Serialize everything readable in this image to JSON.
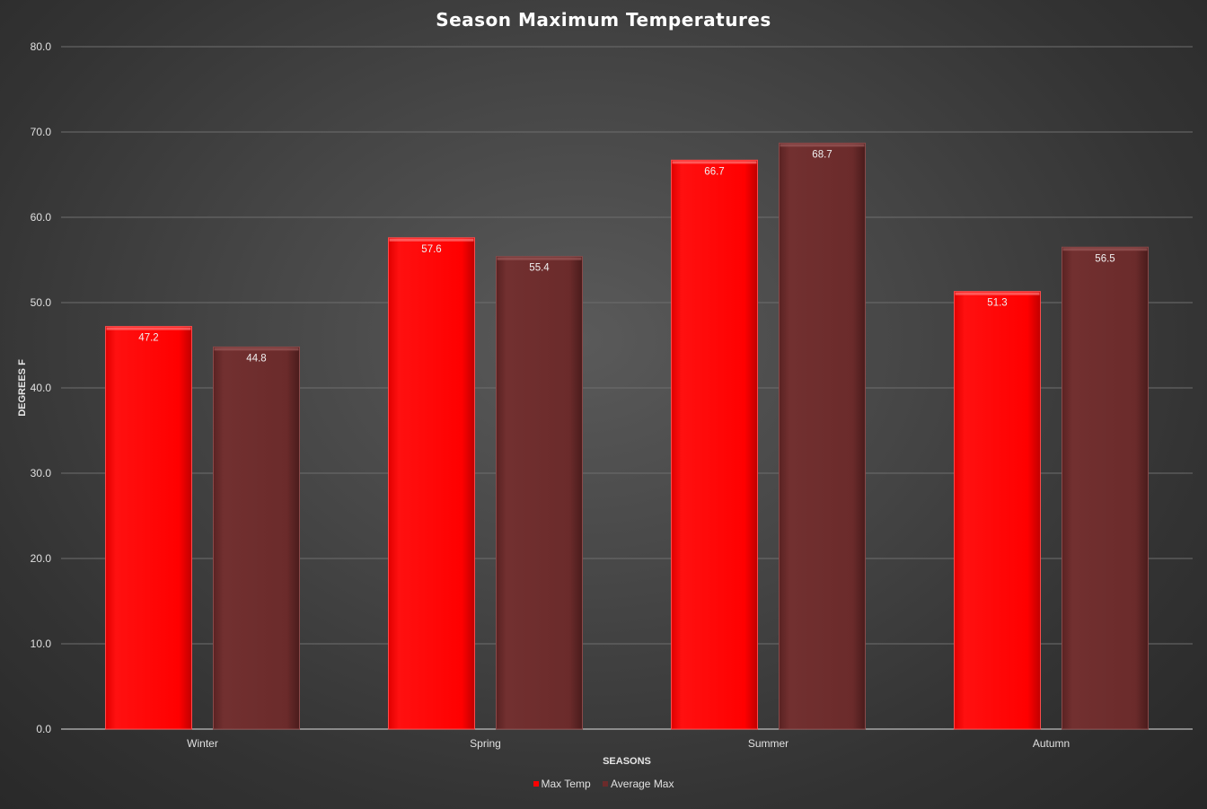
{
  "chart_data": {
    "type": "bar",
    "title": "Season Maximum Temperatures",
    "xlabel": "SEASONS",
    "ylabel": "DEGREES F",
    "categories": [
      "Winter",
      "Spring",
      "Summer",
      "Autumn"
    ],
    "series": [
      {
        "name": "Max Temp",
        "values": [
          47.2,
          57.6,
          66.7,
          51.3
        ],
        "color": "#ff0000"
      },
      {
        "name": "Average Max",
        "values": [
          44.8,
          55.4,
          68.7,
          56.5
        ],
        "color": "#6b2b2b"
      }
    ],
    "ylim": [
      0,
      80
    ],
    "yticks": [
      "0.0",
      "10.0",
      "20.0",
      "30.0",
      "40.0",
      "50.0",
      "60.0",
      "70.0",
      "80.0"
    ],
    "data_labels": [
      [
        "47.2",
        "57.6",
        "66.7",
        "51.3"
      ],
      [
        "44.8",
        "55.4",
        "68.7",
        "56.5"
      ]
    ],
    "grid": true,
    "legend_position": "bottom"
  }
}
